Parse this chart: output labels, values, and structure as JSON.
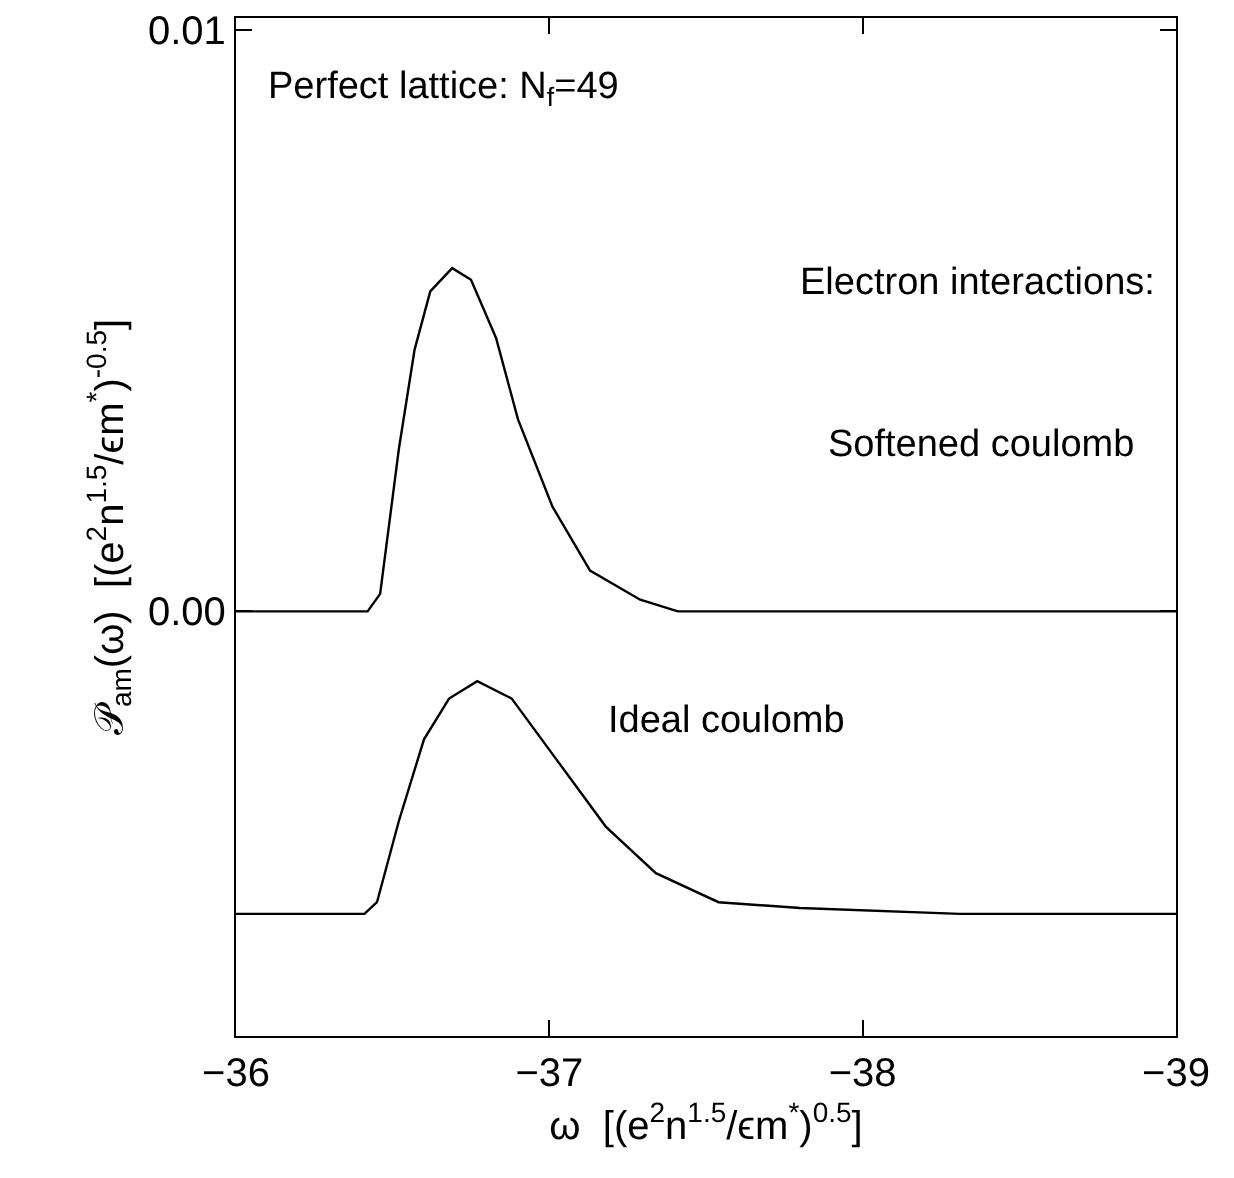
{
  "chart_data": {
    "type": "line",
    "xlabel": "ω  [(e$^{2}$n$^{1.5}$/ϵm$^{*}$)$^{0.5}$]",
    "ylabel": "𝒫$_{am}$(ω)  [(e$^{2}$n$^{1.5}$/ϵm$^{*}$)$^{-0.5}$]",
    "annotations": [
      "Perfect lattice: N$_{f}$=49",
      "Electron interactions:",
      "Softened coulomb",
      "Ideal coulomb"
    ],
    "series": [
      {
        "color": "#000000",
        "x": [
          -36.0,
          -36.42,
          -36.46,
          -36.52,
          -36.57,
          -36.62,
          -36.69,
          -36.75,
          -36.83,
          -36.9,
          -37.01,
          -37.13,
          -37.29,
          -37.41,
          -38.0,
          -39.0
        ],
        "values": [
          0,
          0,
          0.0003,
          0.0028,
          0.0045,
          0.0055,
          0.0059,
          0.0057,
          0.0047,
          0.0033,
          0.0018,
          0.0007,
          0.0002,
          0,
          0,
          0
        ]
      },
      {
        "color": "#000000",
        "x": [
          -36.0,
          -36.41,
          -36.45,
          -36.52,
          -36.6,
          -36.68,
          -36.77,
          -36.88,
          -37.03,
          -37.18,
          -37.34,
          -37.54,
          -37.8,
          -38.31,
          -39.0
        ],
        "values": [
          -0.0052,
          -0.0052,
          -0.005,
          -0.0036,
          -0.0022,
          -0.0015,
          -0.0012,
          -0.0015,
          -0.0026,
          -0.0037,
          -0.0045,
          -0.005,
          -0.0051,
          -0.0052,
          -0.0052
        ]
      }
    ],
    "xlim": [
      -36,
      -39
    ],
    "xticks": [
      -36,
      -37,
      -38,
      -39
    ],
    "ylim": [
      -0.0073,
      0.0102
    ],
    "yticks": [
      {
        "value": 0,
        "label": "0.00"
      },
      {
        "value": 0.01,
        "label": "0.01"
      }
    ],
    "marker": "none",
    "line_style": "solid"
  }
}
